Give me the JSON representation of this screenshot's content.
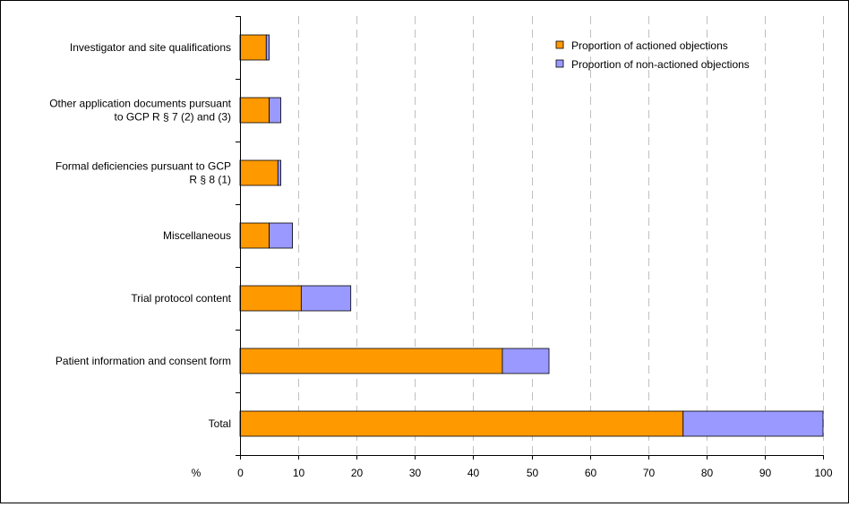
{
  "chart_data": {
    "type": "bar",
    "orientation": "horizontal",
    "stacked": true,
    "categories": [
      "Investigator and site qualifications",
      "Other application documents pursuant to GCP R § 7 (2) and (3)",
      "Formal deficiencies pursuant to GCP R § 8 (1)",
      "Miscellaneous",
      "Trial protocol content",
      "Patient information and consent form",
      "Total"
    ],
    "category_lines": [
      [
        "Investigator and site qualifications"
      ],
      [
        "Other application documents pursuant",
        "to GCP R § 7 (2) and (3)"
      ],
      [
        "Formal deficiencies pursuant to GCP",
        "R § 8 (1)"
      ],
      [
        "Miscellaneous"
      ],
      [
        "Trial protocol content"
      ],
      [
        "Patient information and consent form"
      ],
      [
        "Total"
      ]
    ],
    "series": [
      {
        "name": "Proportion of actioned objections",
        "color": "#FF9900",
        "values": [
          4.5,
          5,
          6.5,
          5,
          10.5,
          45,
          76
        ]
      },
      {
        "name": "Proportion of non-actioned objections",
        "color": "#9999FF",
        "values": [
          0.5,
          2,
          0.5,
          4,
          8.5,
          8,
          24
        ]
      }
    ],
    "xlabel": "%",
    "xlim": [
      0,
      100
    ],
    "xticks": [
      "0",
      "10",
      "20",
      "30",
      "40",
      "50",
      "60",
      "70",
      "80",
      "90",
      "100"
    ],
    "grid": "vertical dashed",
    "legend": "top-right"
  }
}
